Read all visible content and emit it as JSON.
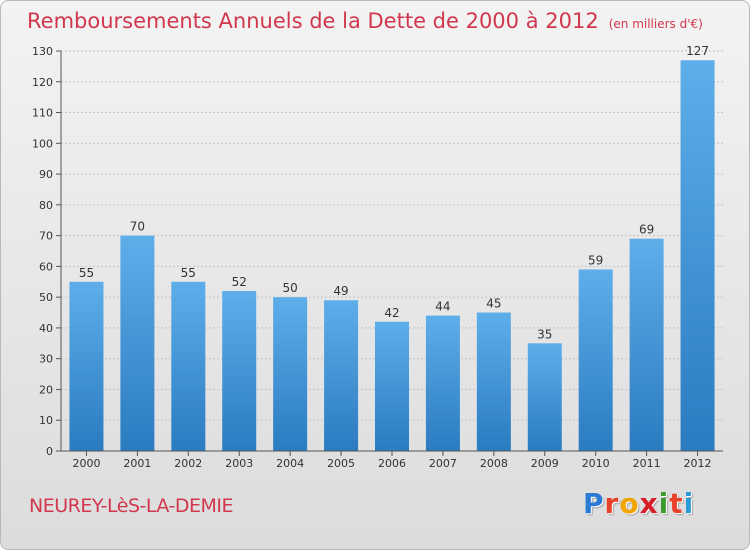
{
  "title": "Remboursements Annuels de la Dette de 2000 à 2012",
  "unit": "(en milliers d'€)",
  "commune": "NEUREY-LèS-LA-DEMIE",
  "brand": {
    "letters": [
      "P",
      "r",
      "o",
      "x",
      "i",
      "t",
      "i"
    ],
    "colors": [
      "#2a7ad6",
      "#e8412a",
      "#f0a400",
      "#d81e2a",
      "#3a9a2a",
      "#e8412a",
      "#2a9ad6"
    ]
  },
  "colors": {
    "bar": "#3b8fd6",
    "bar_light": "#5eaeea",
    "title": "#d1374d"
  },
  "chart_data": {
    "type": "bar",
    "categories": [
      "2000",
      "2001",
      "2002",
      "2003",
      "2004",
      "2005",
      "2006",
      "2007",
      "2008",
      "2009",
      "2010",
      "2011",
      "2012"
    ],
    "values": [
      55,
      70,
      55,
      52,
      50,
      49,
      42,
      44,
      45,
      35,
      59,
      69,
      127
    ],
    "ylim": [
      0,
      130
    ],
    "yticks": [
      0,
      10,
      20,
      30,
      40,
      50,
      60,
      70,
      80,
      90,
      100,
      110,
      120,
      130
    ],
    "grid": true
  }
}
